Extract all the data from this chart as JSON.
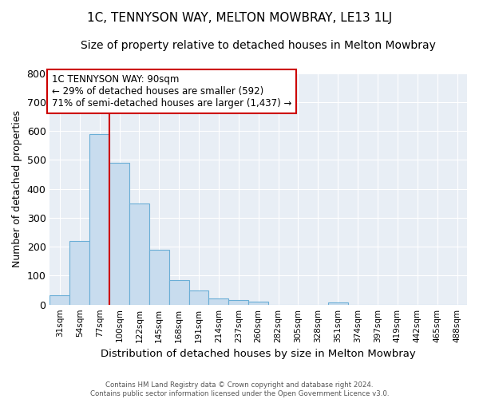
{
  "title": "1C, TENNYSON WAY, MELTON MOWBRAY, LE13 1LJ",
  "subtitle": "Size of property relative to detached houses in Melton Mowbray",
  "xlabel": "Distribution of detached houses by size in Melton Mowbray",
  "ylabel": "Number of detached properties",
  "bin_labels": [
    "31sqm",
    "54sqm",
    "77sqm",
    "100sqm",
    "122sqm",
    "145sqm",
    "168sqm",
    "191sqm",
    "214sqm",
    "237sqm",
    "260sqm",
    "282sqm",
    "305sqm",
    "328sqm",
    "351sqm",
    "374sqm",
    "397sqm",
    "419sqm",
    "442sqm",
    "465sqm",
    "488sqm"
  ],
  "bar_heights": [
    32,
    220,
    590,
    490,
    350,
    190,
    85,
    50,
    20,
    15,
    10,
    0,
    0,
    0,
    7,
    0,
    0,
    0,
    0,
    0,
    0
  ],
  "bar_color": "#c8dcee",
  "bar_edge_color": "#6aaed6",
  "vline_color": "#cc0000",
  "annotation_text": "1C TENNYSON WAY: 90sqm\n← 29% of detached houses are smaller (592)\n71% of semi-detached houses are larger (1,437) →",
  "annotation_box_edgecolor": "#cc0000",
  "ylim": [
    0,
    800
  ],
  "yticks": [
    0,
    100,
    200,
    300,
    400,
    500,
    600,
    700,
    800
  ],
  "footer_text": "Contains HM Land Registry data © Crown copyright and database right 2024.\nContains public sector information licensed under the Open Government Licence v3.0.",
  "plot_bg_color": "#e8eef5",
  "fig_bg_color": "#ffffff",
  "grid_color": "#ffffff",
  "title_fontsize": 11,
  "subtitle_fontsize": 10
}
